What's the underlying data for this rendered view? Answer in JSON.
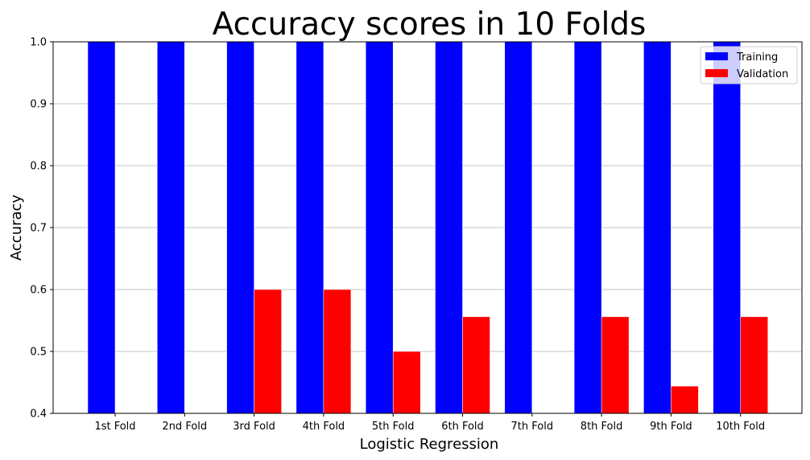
{
  "chart_data": {
    "type": "bar",
    "title": "Accuracy scores in 10 Folds",
    "xlabel": "Logistic Regression",
    "ylabel": "Accuracy",
    "ylim": [
      0.4,
      1.0
    ],
    "yticks": [
      "0.4",
      "0.5",
      "0.6",
      "0.7",
      "0.8",
      "0.9",
      "1.0"
    ],
    "grid": "horizontal",
    "legend_position": "top-right",
    "categories": [
      "1st Fold",
      "2nd Fold",
      "3rd Fold",
      "4th Fold",
      "5th Fold",
      "6th Fold",
      "7th Fold",
      "8th Fold",
      "9th Fold",
      "10th Fold"
    ],
    "series": [
      {
        "name": "Training",
        "color": "#0000ff",
        "values": [
          1.0,
          1.0,
          1.0,
          1.0,
          1.0,
          1.0,
          1.0,
          1.0,
          1.0,
          1.0
        ]
      },
      {
        "name": "Validation",
        "color": "#ff0000",
        "values": [
          0.4,
          0.4,
          0.6,
          0.6,
          0.5,
          0.556,
          0.4,
          0.556,
          0.444,
          0.556
        ]
      }
    ]
  }
}
